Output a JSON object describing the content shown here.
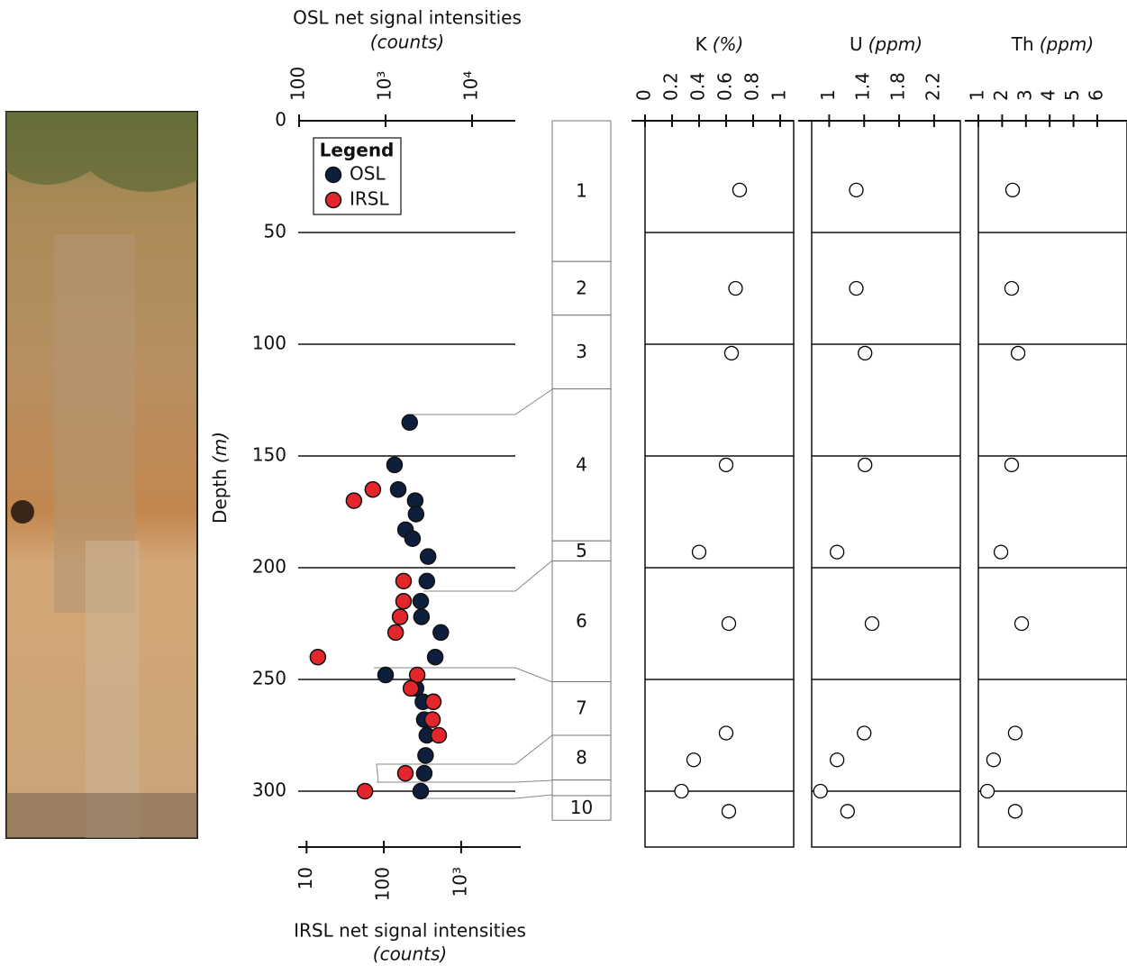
{
  "chart_data": [
    {
      "type": "scatter",
      "x_label": "OSL net signal intensities",
      "x_unit": "(counts)",
      "x2_label": "IRSL net signal intensities",
      "x2_unit": "(counts)",
      "y_label": "Depth",
      "y_unit": "(m)",
      "xscale": "log",
      "xlim": [
        100,
        31623
      ],
      "xticks": [
        100,
        {
          "value": 1000,
          "label": "10³"
        },
        {
          "value": 10000,
          "label": "10⁴"
        }
      ],
      "x2scale": "log",
      "x2lim": [
        8,
        5900
      ],
      "x2ticks": [
        10,
        100,
        {
          "value": 1000,
          "label": "10³"
        }
      ],
      "ylim": [
        0,
        325
      ],
      "yticks": [
        0,
        50,
        100,
        150,
        200,
        250,
        300
      ],
      "y_inverted": true,
      "grid": true,
      "legend_title": "Legend",
      "legend": "upper left",
      "series": [
        {
          "name": "OSL",
          "color": "#0d1f3c",
          "x": [
            1900,
            1270,
            1400,
            2200,
            2250,
            1700,
            2050,
            3100,
            3000,
            2550,
            2600,
            4350,
            3750,
            1000,
            2250,
            2700,
            2800,
            3000,
            2900,
            2800,
            2550
          ],
          "values": [
            135,
            154,
            165,
            170,
            176,
            183,
            187,
            195,
            206,
            215,
            222,
            229,
            240,
            248,
            254,
            260,
            268,
            275,
            284,
            292,
            300
          ]
        },
        {
          "name": "IRSL",
          "color": "#e3262b",
          "axis": "x2",
          "x": [
            72,
            41,
            180,
            180,
            162,
            142,
            14,
            270,
            224,
            437,
            426,
            513,
            190,
            57
          ],
          "values": [
            165,
            170,
            206,
            215,
            222,
            229,
            240,
            248,
            254,
            260,
            268,
            275,
            292,
            300
          ]
        }
      ]
    },
    {
      "type": "units",
      "categories": [
        "1",
        "2",
        "3",
        "4",
        "5",
        "6",
        "7",
        "8",
        null,
        "10"
      ],
      "values": [
        0,
        63,
        87,
        120,
        188,
        197,
        251,
        275,
        295,
        302
      ],
      "bottom": 313
    },
    {
      "type": "scatter",
      "title": "K",
      "unit": "(%)",
      "xlim": [
        0,
        1.1
      ],
      "xticks": [
        0,
        0.2,
        0.4,
        0.6,
        0.8,
        1
      ],
      "color": "#000000",
      "series": [
        {
          "x": [
            0.7,
            0.67,
            0.64,
            0.6,
            0.4,
            0.62,
            0.6,
            0.36,
            0.27,
            0.62
          ],
          "values": [
            31,
            75,
            104,
            154,
            193,
            225,
            274,
            286,
            300,
            309
          ]
        }
      ]
    },
    {
      "type": "scatter",
      "title": "U",
      "unit": "(ppm)",
      "xlim": [
        0.8,
        2.5
      ],
      "xticks": [
        1,
        1.4,
        1.8,
        2.2
      ],
      "color": "#000000",
      "series": [
        {
          "x": [
            1.31,
            1.31,
            1.41,
            1.41,
            1.09,
            1.49,
            1.4,
            1.09,
            0.9,
            1.21
          ],
          "values": [
            31,
            75,
            104,
            154,
            193,
            225,
            274,
            286,
            300,
            309
          ]
        }
      ]
    },
    {
      "type": "scatter",
      "title": "Th",
      "unit": "(ppm)",
      "xlim": [
        1,
        7.25
      ],
      "xticks": [
        1,
        2,
        3,
        4,
        5,
        6
      ],
      "color": "#000000",
      "series": [
        {
          "x": [
            2.44,
            2.4,
            2.67,
            2.4,
            1.95,
            2.82,
            2.55,
            1.64,
            1.38,
            2.55
          ],
          "values": [
            31,
            75,
            104,
            154,
            193,
            225,
            274,
            286,
            300,
            309
          ]
        }
      ]
    }
  ]
}
